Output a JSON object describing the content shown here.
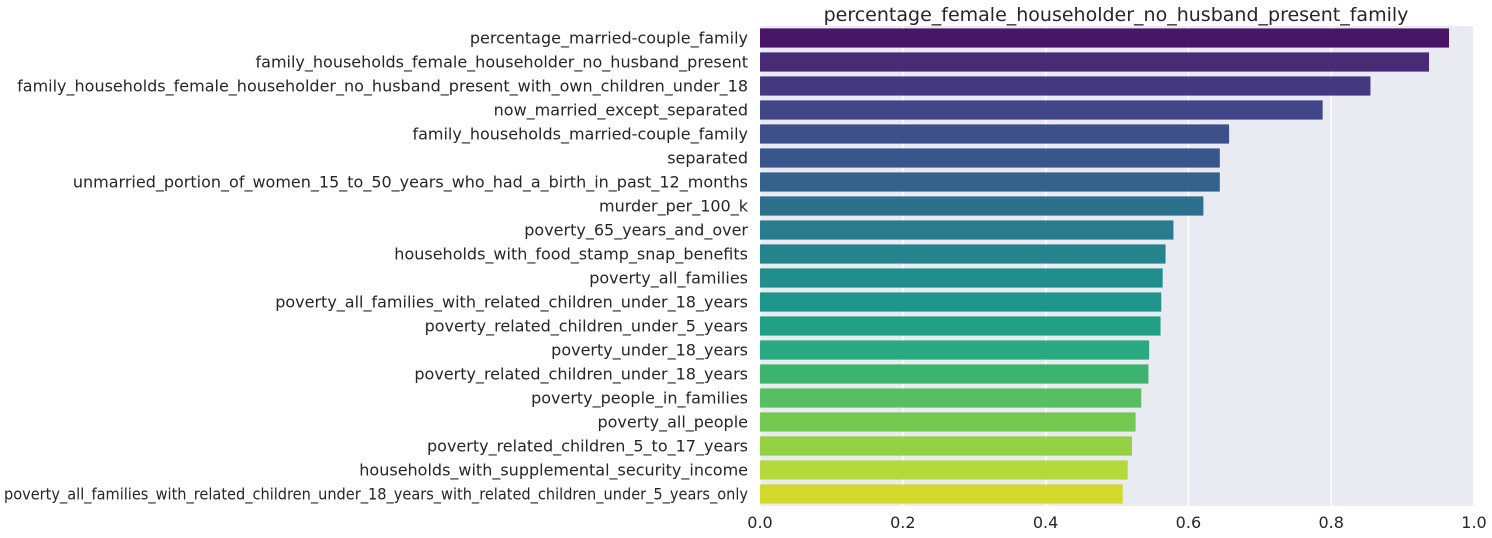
{
  "chart_data": {
    "type": "bar",
    "orientation": "horizontal",
    "title": "percentage_female_householder_no_husband_present_family",
    "xlabel": "",
    "ylabel": "",
    "xlim": [
      0,
      1.0
    ],
    "xticks": [
      "0.0",
      "0.2",
      "0.4",
      "0.6",
      "0.8",
      "1.0"
    ],
    "grid": true,
    "colormap": "viridis",
    "background": "#eaeaf2",
    "categories": [
      "percentage_married-couple_family",
      "family_households_female_householder_no_husband_present",
      "family_households_female_householder_no_husband_present_with_own_children_under_18",
      "now_married_except_separated",
      "family_households_married-couple_family",
      "separated",
      "unmarried_portion_of_women_15_to_50_years_who_had_a_birth_in_past_12_months",
      "murder_per_100_k",
      "poverty_65_years_and_over",
      "households_with_food_stamp_snap_benefits",
      "poverty_all_families",
      "poverty_all_families_with_related_children_under_18_years",
      "poverty_related_children_under_5_years",
      "poverty_under_18_years",
      "poverty_related_children_under_18_years",
      "poverty_people_in_families",
      "poverty_all_people",
      "poverty_related_children_5_to_17_years",
      "households_with_supplemental_security_income",
      "poverty_all_families_with_related_children_under_18_years_with_related_children_under_5_years_only"
    ],
    "values": [
      0.965,
      0.937,
      0.855,
      0.788,
      0.657,
      0.644,
      0.644,
      0.621,
      0.579,
      0.568,
      0.564,
      0.562,
      0.561,
      0.545,
      0.544,
      0.534,
      0.526,
      0.521,
      0.515,
      0.508
    ],
    "colors": [
      "#481567",
      "#482b77",
      "#453882",
      "#404588",
      "#3d508a",
      "#39568c",
      "#33638d",
      "#2d708e",
      "#287c8e",
      "#25838e",
      "#218e8d",
      "#1f968b",
      "#22a085",
      "#2ba980",
      "#3cb46d",
      "#56bf60",
      "#73c84f",
      "#93d143",
      "#b3d93a",
      "#d2d92a"
    ]
  }
}
